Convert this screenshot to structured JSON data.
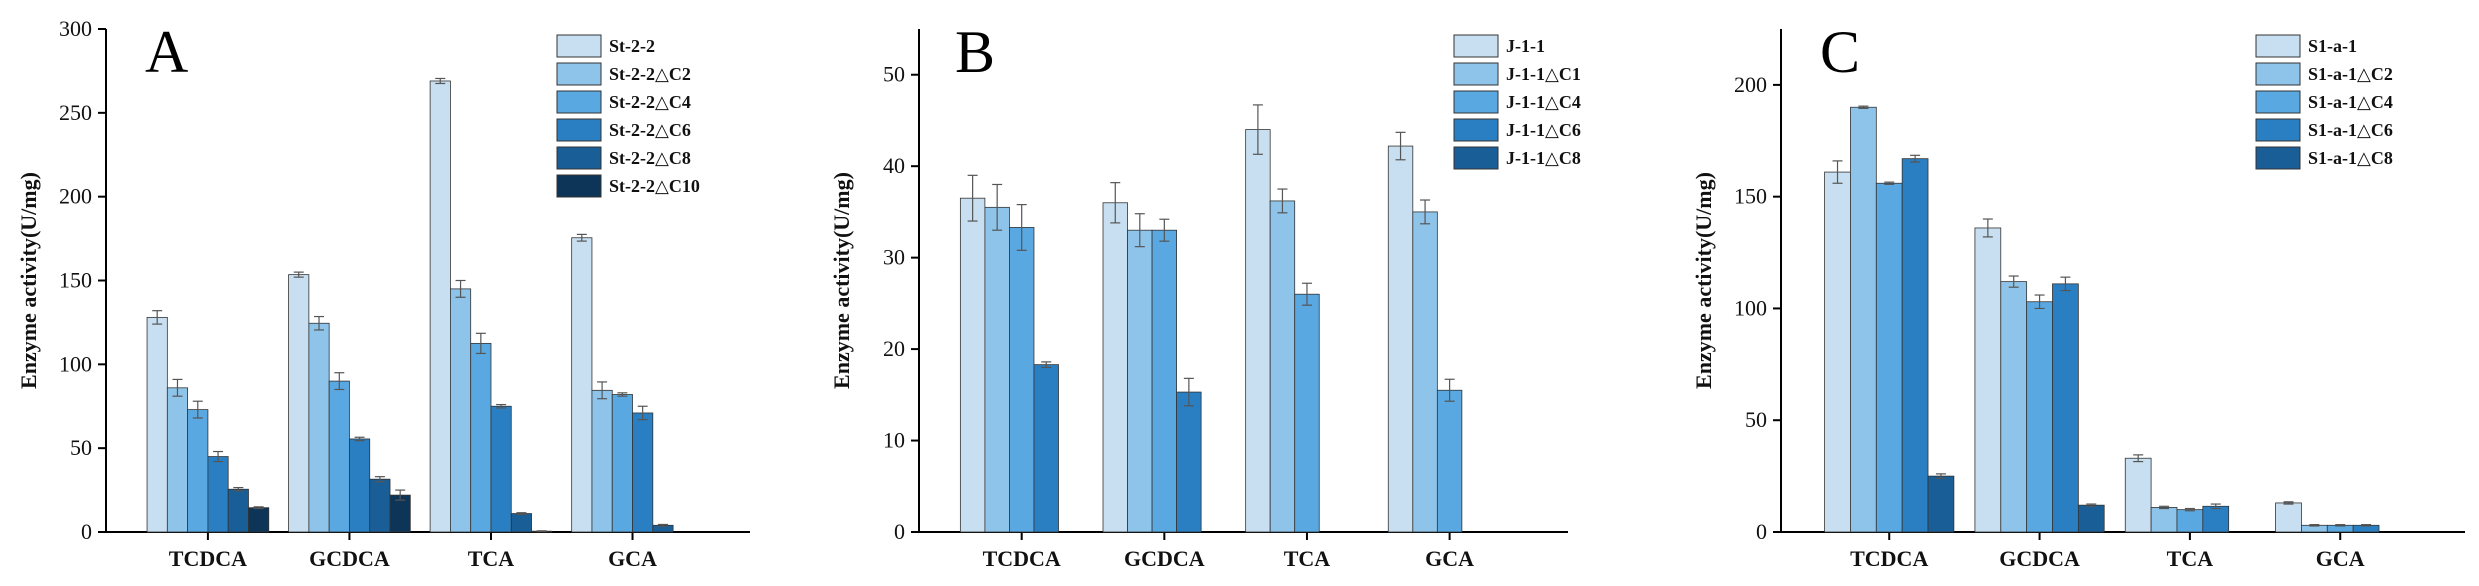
{
  "chart_data": [
    {
      "type": "bar",
      "panel_label": "A",
      "ylabel": "Enzyme activity(U/mg)",
      "xlabel": "",
      "ylim": [
        0,
        300
      ],
      "yticks": [
        0,
        50,
        100,
        150,
        200,
        250,
        300
      ],
      "categories": [
        "TCDCA",
        "GCDCA",
        "TCA",
        "GCA"
      ],
      "legend_position": "top-right",
      "series": [
        {
          "name": "St-2-2",
          "color": "#c7dff0",
          "values": [
            128,
            153.5,
            269,
            175.5
          ],
          "errors": [
            4,
            1.5,
            1.5,
            2
          ]
        },
        {
          "name": "St-2-2△C2",
          "color": "#8ec4ea",
          "values": [
            86,
            124.5,
            145,
            84.5
          ],
          "errors": [
            5,
            4,
            5,
            5
          ]
        },
        {
          "name": "St-2-2△C4",
          "color": "#5aa8e2",
          "values": [
            73,
            90,
            112.5,
            82
          ],
          "errors": [
            5,
            5,
            6,
            1
          ]
        },
        {
          "name": "St-2-2△C6",
          "color": "#2a7fc2",
          "values": [
            45,
            55.5,
            75,
            71
          ],
          "errors": [
            3,
            1,
            1,
            4
          ]
        },
        {
          "name": "St-2-2△C8",
          "color": "#1a5e98",
          "values": [
            25.5,
            31.5,
            11,
            4
          ],
          "errors": [
            1,
            1.5,
            0.5,
            0.5
          ]
        },
        {
          "name": "St-2-2△C10",
          "color": "#0d3558",
          "values": [
            14.5,
            22,
            0.5,
            0
          ],
          "errors": [
            0.5,
            3,
            0.2,
            0
          ]
        }
      ]
    },
    {
      "type": "bar",
      "panel_label": "B",
      "ylabel": "Enzyme activity(U/mg)",
      "xlabel": "",
      "ylim": [
        0,
        55
      ],
      "yticks": [
        0,
        10,
        20,
        30,
        40,
        50
      ],
      "categories": [
        "TCDCA",
        "GCDCA",
        "TCA",
        "GCA"
      ],
      "legend_position": "top-right",
      "series": [
        {
          "name": "J-1-1",
          "color": "#c7dff0",
          "values": [
            36.5,
            36,
            44,
            42.2
          ],
          "errors": [
            2.5,
            2.2,
            2.7,
            1.5
          ]
        },
        {
          "name": "J-1-1△C1",
          "color": "#8ec4ea",
          "values": [
            35.5,
            33,
            36.2,
            35
          ],
          "errors": [
            2.5,
            1.8,
            1.3,
            1.3
          ]
        },
        {
          "name": "J-1-1△C4",
          "color": "#5aa8e2",
          "values": [
            33.3,
            33,
            26,
            15.5
          ],
          "errors": [
            2.5,
            1.2,
            1.2,
            1.2
          ]
        },
        {
          "name": "J-1-1△C6",
          "color": "#2a7fc2",
          "values": [
            18.3,
            15.3,
            0,
            0
          ],
          "errors": [
            0.3,
            1.5,
            0,
            0
          ]
        },
        {
          "name": "J-1-1△C8",
          "color": "#1a5e98",
          "values": [
            0,
            0,
            0,
            0
          ],
          "errors": [
            0,
            0,
            0,
            0
          ]
        }
      ]
    },
    {
      "type": "bar",
      "panel_label": "C",
      "ylabel": "Enzyme activity(U/mg)",
      "xlabel": "",
      "ylim": [
        0,
        225
      ],
      "yticks": [
        0,
        50,
        100,
        150,
        200
      ],
      "categories": [
        "TCDCA",
        "GCDCA",
        "TCA",
        "GCA"
      ],
      "legend_position": "top-right",
      "series": [
        {
          "name": "S1-a-1",
          "color": "#c7dff0",
          "values": [
            161,
            136,
            33,
            13
          ],
          "errors": [
            5,
            4,
            1.5,
            0.5
          ]
        },
        {
          "name": "S1-a-1△C2",
          "color": "#8ec4ea",
          "values": [
            190,
            112,
            11,
            3
          ],
          "errors": [
            0.5,
            2.5,
            0.5,
            0.3
          ]
        },
        {
          "name": "S1-a-1△C4",
          "color": "#5aa8e2",
          "values": [
            156,
            103,
            10,
            3
          ],
          "errors": [
            0.5,
            3,
            0.5,
            0.3
          ]
        },
        {
          "name": "S1-a-1△C6",
          "color": "#2a7fc2",
          "values": [
            167,
            111,
            11.5,
            3
          ],
          "errors": [
            1.5,
            3,
            1,
            0.3
          ]
        },
        {
          "name": "S1-a-1△C8",
          "color": "#1a5e98",
          "values": [
            25,
            12,
            0,
            0
          ],
          "errors": [
            1,
            0.5,
            0,
            0
          ]
        }
      ]
    }
  ]
}
